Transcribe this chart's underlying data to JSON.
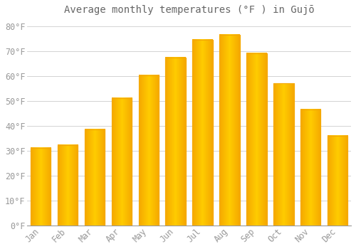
{
  "title": "Average monthly temperatures (°F ) in Gujō",
  "months": [
    "Jan",
    "Feb",
    "Mar",
    "Apr",
    "May",
    "Jun",
    "Jul",
    "Aug",
    "Sep",
    "Oct",
    "Nov",
    "Dec"
  ],
  "values": [
    31.1,
    32.4,
    38.5,
    51.1,
    60.3,
    67.3,
    74.5,
    76.5,
    69.1,
    57.0,
    46.6,
    36.1
  ],
  "bar_color_center": "#FFCC00",
  "bar_color_edge": "#F5A800",
  "background_color": "#FFFFFF",
  "grid_color": "#CCCCCC",
  "yticks": [
    0,
    10,
    20,
    30,
    40,
    50,
    60,
    70,
    80
  ],
  "ylim": [
    0,
    83
  ],
  "title_fontsize": 10,
  "tick_fontsize": 8.5,
  "tick_color": "#999999",
  "title_color": "#666666",
  "font_family": "monospace",
  "bar_width": 0.75
}
